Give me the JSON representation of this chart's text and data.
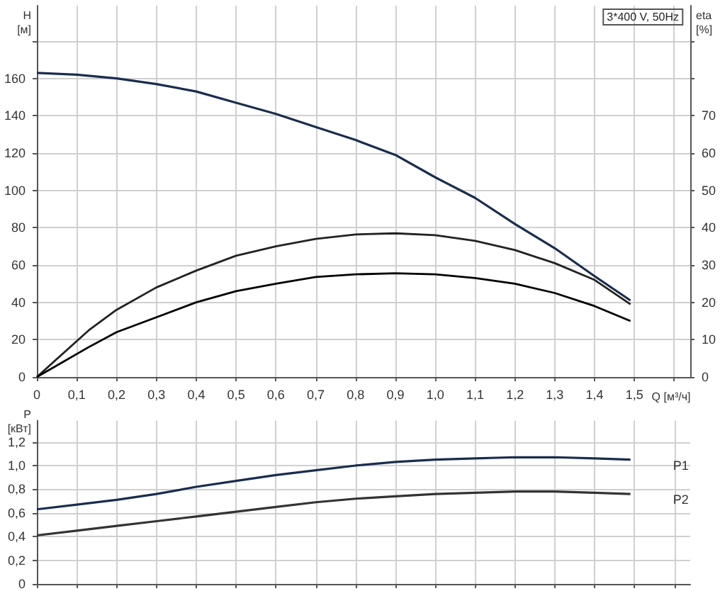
{
  "chart_data": [
    {
      "type": "line",
      "title": "3*400 V, 50Hz",
      "xlabel": "Q [м³/ч]",
      "ylabel": "H\n[м]",
      "y2label": "eta\n[%]",
      "xlim": [
        0,
        1.64
      ],
      "xticks": [
        0,
        {
          "value": 0.1,
          "label": "0,1"
        },
        {
          "value": 0.2,
          "label": "0,2"
        },
        {
          "value": 0.3,
          "label": "0,3"
        },
        {
          "value": 0.4,
          "label": "0,4"
        },
        {
          "value": 0.5,
          "label": "0,5"
        },
        {
          "value": 0.6,
          "label": "0,6"
        },
        {
          "value": 0.7,
          "label": "0,7"
        },
        {
          "value": 0.8,
          "label": "0,8"
        },
        {
          "value": 0.9,
          "label": "0,9"
        },
        {
          "value": 1.0,
          "label": "1,0"
        },
        {
          "value": 1.1,
          "label": "1,1"
        },
        {
          "value": 1.2,
          "label": "1,2"
        },
        {
          "value": 1.3,
          "label": "1,3"
        },
        {
          "value": 1.4,
          "label": "1,4"
        },
        {
          "value": 1.5,
          "label": "1,5"
        },
        {
          "value": 1.6,
          "label": null
        }
      ],
      "ylim": [
        0,
        199
      ],
      "yticks": [
        0,
        20,
        40,
        60,
        80,
        100,
        120,
        140,
        160,
        {
          "value": 180,
          "label": null
        }
      ],
      "y2lim": [
        0,
        99.5
      ],
      "y2ticks": [
        0,
        10,
        20,
        30,
        40,
        50,
        60,
        70,
        {
          "value": 80,
          "label": null
        },
        {
          "value": 90,
          "label": null
        }
      ],
      "grid": true,
      "legend": false,
      "marker": "none",
      "series": [
        {
          "color": "#1a2d4f",
          "x": [
            0,
            0.1,
            0.2,
            0.3,
            0.4,
            0.5,
            0.6,
            0.7,
            0.8,
            0.9,
            1.0,
            1.1,
            1.2,
            1.3,
            1.4,
            1.49
          ],
          "values": [
            163,
            162,
            160,
            157,
            153,
            147,
            141,
            134,
            127,
            119,
            107,
            96,
            82,
            69,
            54,
            41
          ]
        },
        {
          "color": "#222222",
          "axis": "y2",
          "x": [
            0,
            0.13,
            0.2,
            0.3,
            0.4,
            0.5,
            0.6,
            0.7,
            0.8,
            0.9,
            1.0,
            1.1,
            1.2,
            1.3,
            1.4,
            1.49
          ],
          "values": [
            0,
            12.5,
            18,
            24,
            28.5,
            32.5,
            35,
            37,
            38.2,
            38.5,
            38,
            36.5,
            34,
            30.5,
            26,
            19.5
          ]
        },
        {
          "color": "#000000",
          "axis": "y2",
          "x": [
            0,
            0.13,
            0.2,
            0.3,
            0.4,
            0.5,
            0.6,
            0.7,
            0.8,
            0.9,
            1.0,
            1.1,
            1.2,
            1.3,
            1.4,
            1.49
          ],
          "values": [
            0,
            8,
            12,
            16,
            20,
            23,
            25,
            26.8,
            27.5,
            27.8,
            27.5,
            26.5,
            25,
            22.5,
            19,
            15
          ]
        }
      ]
    },
    {
      "type": "line",
      "ylabel": "P\n[кВт]",
      "tick_labels": "y",
      "xlim": [
        0,
        1.64
      ],
      "xticks": [
        0,
        0.1,
        0.2,
        0.3,
        0.4,
        0.5,
        0.6,
        0.7,
        0.8,
        0.9,
        1.0,
        1.1,
        1.2,
        1.3,
        1.4,
        1.5,
        1.6
      ],
      "ylim": [
        0,
        1.38
      ],
      "yticks": [
        0,
        {
          "value": 0.2,
          "label": "0,2"
        },
        {
          "value": 0.4,
          "label": "0,4"
        },
        {
          "value": 0.6,
          "label": "0,6"
        },
        {
          "value": 0.8,
          "label": "0,8"
        },
        {
          "value": 1.0,
          "label": "1,0"
        },
        {
          "value": 1.2,
          "label": "1,2"
        }
      ],
      "grid": true,
      "legend": false,
      "marker": "none",
      "series": [
        {
          "name": "P1",
          "color": "#1a2d4f",
          "x": [
            0,
            0.1,
            0.2,
            0.3,
            0.4,
            0.5,
            0.6,
            0.7,
            0.8,
            0.9,
            1.0,
            1.1,
            1.2,
            1.3,
            1.4,
            1.49
          ],
          "values": [
            0.63,
            0.67,
            0.71,
            0.76,
            0.82,
            0.87,
            0.92,
            0.96,
            1.0,
            1.03,
            1.05,
            1.06,
            1.07,
            1.07,
            1.06,
            1.05
          ]
        },
        {
          "name": "P2",
          "color": "#333333",
          "x": [
            0,
            0.1,
            0.2,
            0.3,
            0.4,
            0.5,
            0.6,
            0.7,
            0.8,
            0.9,
            1.0,
            1.1,
            1.2,
            1.3,
            1.4,
            1.49
          ],
          "values": [
            0.41,
            0.45,
            0.49,
            0.53,
            0.57,
            0.61,
            0.65,
            0.69,
            0.72,
            0.74,
            0.76,
            0.77,
            0.78,
            0.78,
            0.77,
            0.76
          ]
        }
      ]
    }
  ]
}
